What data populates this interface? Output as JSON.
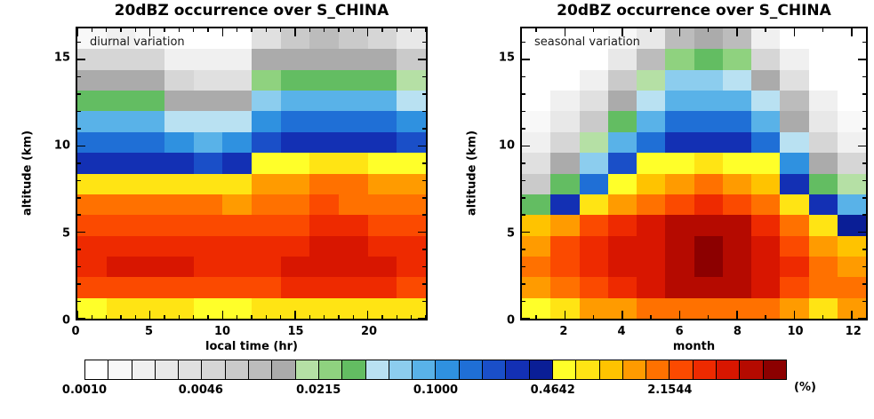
{
  "chart_data": {
    "type": "heatmap",
    "panels": [
      {
        "id": "diurnal",
        "title": "20dBZ occurrence over S_CHINA",
        "annotation": "diurnal variation",
        "xlabel": "local time (hr)",
        "ylabel": "altitude (km)",
        "x_range": [
          0,
          24
        ],
        "x_major_ticks": [
          0,
          5,
          10,
          15,
          20
        ],
        "x_minor_step": 1,
        "y_range": [
          0,
          16.8
        ],
        "y_major_ticks": [
          0,
          5,
          10,
          15
        ],
        "y_minor_step": 1,
        "n_cols": 12,
        "n_rows": 14,
        "col_bin_hours": 2,
        "row_bin_km": 1.2,
        "values_rows_top_to_bottom": [
          [
            0.0015,
            0.002,
            0.0015,
            0.001,
            0.001,
            0.0012,
            0.004,
            0.008,
            0.009,
            0.008,
            0.005,
            0.003
          ],
          [
            0.005,
            0.006,
            0.005,
            0.0025,
            0.002,
            0.002,
            0.012,
            0.014,
            0.014,
            0.014,
            0.012,
            0.008
          ],
          [
            0.012,
            0.014,
            0.012,
            0.005,
            0.004,
            0.004,
            0.025,
            0.035,
            0.038,
            0.035,
            0.03,
            0.018
          ],
          [
            0.035,
            0.038,
            0.035,
            0.014,
            0.012,
            0.012,
            0.06,
            0.08,
            0.09,
            0.09,
            0.08,
            0.05
          ],
          [
            0.08,
            0.09,
            0.08,
            0.05,
            0.04,
            0.045,
            0.13,
            0.16,
            0.18,
            0.18,
            0.16,
            0.12
          ],
          [
            0.15,
            0.16,
            0.15,
            0.1,
            0.09,
            0.1,
            0.25,
            0.3,
            0.32,
            0.32,
            0.3,
            0.24
          ],
          [
            0.3,
            0.3,
            0.28,
            0.26,
            0.25,
            0.26,
            0.5,
            0.6,
            0.68,
            0.65,
            0.6,
            0.5
          ],
          [
            0.75,
            0.8,
            0.8,
            0.78,
            0.75,
            0.72,
            1.3,
            1.5,
            1.7,
            1.6,
            1.5,
            1.3
          ],
          [
            1.6,
            1.7,
            1.8,
            1.7,
            1.6,
            1.5,
            1.8,
            2.0,
            2.2,
            2.1,
            2.0,
            1.8
          ],
          [
            2.6,
            2.7,
            2.8,
            2.7,
            2.6,
            2.4,
            2.6,
            2.9,
            3.1,
            3.0,
            2.9,
            2.7
          ],
          [
            3.6,
            3.8,
            3.9,
            3.8,
            3.6,
            3.4,
            3.6,
            3.9,
            4.2,
            4.1,
            3.9,
            3.7
          ],
          [
            3.9,
            4.1,
            4.2,
            4.1,
            3.9,
            3.7,
            3.8,
            4.1,
            4.4,
            4.3,
            4.1,
            3.9
          ],
          [
            2.7,
            2.8,
            2.9,
            2.8,
            2.7,
            2.6,
            2.7,
            3.0,
            3.2,
            3.1,
            3.0,
            2.8
          ],
          [
            0.62,
            0.65,
            0.68,
            0.65,
            0.62,
            0.6,
            0.65,
            0.7,
            0.75,
            0.72,
            0.7,
            0.65
          ]
        ]
      },
      {
        "id": "seasonal",
        "title": "20dBZ occurrence over S_CHINA",
        "annotation": "seasonal variation",
        "xlabel": "month",
        "ylabel": "altitude (km)",
        "x_range": [
          0.5,
          12.5
        ],
        "x_major_ticks": [
          2,
          4,
          6,
          8,
          10,
          12
        ],
        "x_minor_step": 1,
        "y_range": [
          0,
          16.8
        ],
        "y_major_ticks": [
          0,
          5,
          10,
          15
        ],
        "y_minor_step": 1,
        "n_cols": 12,
        "n_rows": 14,
        "col_bin_months": 1,
        "row_bin_km": 1.2,
        "values_rows_top_to_bottom": [
          [
            0.001,
            0.001,
            0.001,
            0.0015,
            0.003,
            0.01,
            0.012,
            0.009,
            0.002,
            0.001,
            0.001,
            0.001
          ],
          [
            0.001,
            0.001,
            0.0012,
            0.003,
            0.009,
            0.025,
            0.03,
            0.022,
            0.006,
            0.002,
            0.001,
            0.001
          ],
          [
            0.001,
            0.0012,
            0.002,
            0.007,
            0.02,
            0.055,
            0.06,
            0.05,
            0.014,
            0.004,
            0.0012,
            0.001
          ],
          [
            0.0012,
            0.002,
            0.004,
            0.015,
            0.045,
            0.08,
            0.09,
            0.08,
            0.04,
            0.009,
            0.002,
            0.0012
          ],
          [
            0.0015,
            0.003,
            0.008,
            0.035,
            0.09,
            0.14,
            0.16,
            0.14,
            0.08,
            0.015,
            0.003,
            0.0015
          ],
          [
            0.002,
            0.005,
            0.02,
            0.08,
            0.18,
            0.28,
            0.3,
            0.28,
            0.15,
            0.05,
            0.005,
            0.002
          ],
          [
            0.004,
            0.012,
            0.06,
            0.2,
            0.5,
            0.6,
            0.65,
            0.6,
            0.5,
            0.12,
            0.012,
            0.005
          ],
          [
            0.008,
            0.03,
            0.15,
            0.5,
            1.0,
            1.5,
            1.6,
            1.5,
            0.9,
            0.3,
            0.03,
            0.02
          ],
          [
            0.035,
            0.3,
            0.7,
            1.2,
            2.0,
            2.8,
            3.0,
            2.8,
            1.7,
            0.8,
            0.3,
            0.08
          ],
          [
            0.9,
            1.4,
            2.3,
            3.2,
            4.0,
            5.6,
            6.0,
            5.6,
            3.6,
            1.9,
            0.7,
            0.4
          ],
          [
            1.4,
            2.2,
            3.2,
            4.0,
            4.9,
            6.5,
            7.4,
            6.8,
            4.3,
            2.7,
            1.3,
            1.1
          ],
          [
            1.8,
            2.4,
            3.5,
            4.3,
            5.0,
            7.0,
            7.8,
            7.2,
            4.6,
            3.0,
            1.7,
            1.5
          ],
          [
            1.5,
            1.8,
            2.6,
            3.6,
            4.2,
            5.5,
            6.0,
            5.8,
            4.2,
            2.9,
            1.6,
            1.8
          ],
          [
            0.6,
            0.7,
            1.2,
            1.4,
            1.7,
            1.9,
            1.9,
            1.8,
            1.6,
            1.3,
            0.8,
            1.5
          ]
        ]
      }
    ],
    "colorbar": {
      "unit_label": "(%)",
      "scale": "log10",
      "min": 0.001,
      "max": 10,
      "tick_labels": [
        "0.0010",
        "0.0046",
        "0.0215",
        "0.1000",
        "0.4642",
        "2.1544"
      ],
      "tick_values": [
        0.001,
        0.0046,
        0.0215,
        0.1,
        0.4642,
        2.1544
      ],
      "colors": [
        "#ffffff",
        "#f8f8f8",
        "#f0f0f0",
        "#e8e8e8",
        "#e0e0e0",
        "#d6d6d6",
        "#cacaca",
        "#bcbcbc",
        "#ababab",
        "#b5e0a5",
        "#8fd27f",
        "#63bd62",
        "#b9e1f2",
        "#8ccdee",
        "#59b2e8",
        "#2f91e0",
        "#1f6fd6",
        "#1a4fc8",
        "#1330b4",
        "#0a1e96",
        "#ffff29",
        "#ffe414",
        "#ffc300",
        "#ff9b00",
        "#ff7100",
        "#fb4a00",
        "#ee2a00",
        "#d81600",
        "#b50a00",
        "#8c0000"
      ]
    }
  }
}
